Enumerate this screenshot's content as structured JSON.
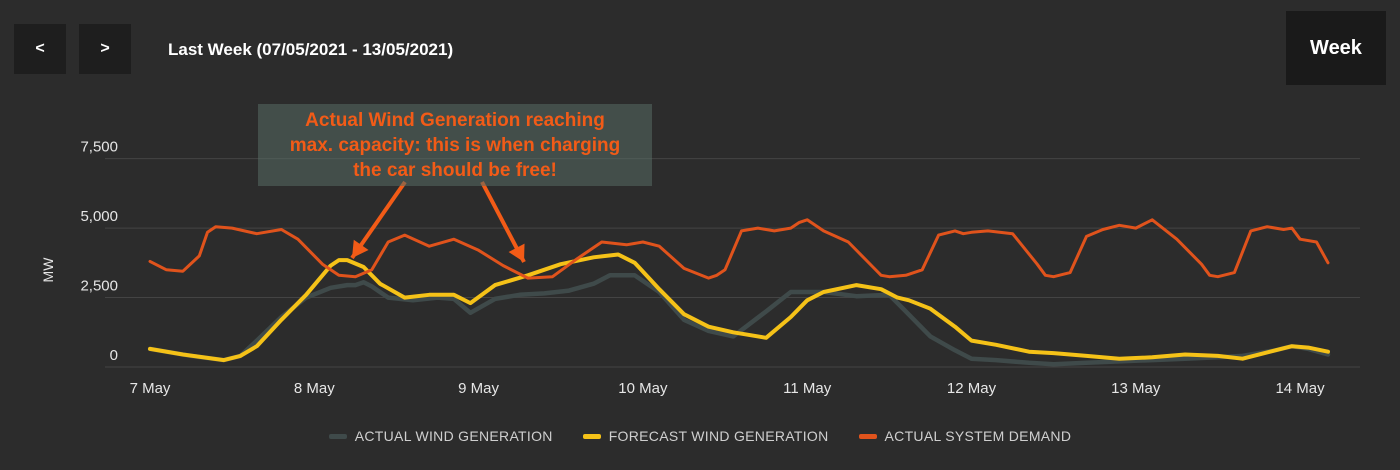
{
  "controls": {
    "prev_label": "<",
    "next_label": ">",
    "range_title": "Last Week (07/05/2021 - 13/05/2021)",
    "view_label": "Week"
  },
  "annotation": {
    "text": "Actual Wind Generation reaching\nmax. capacity: this is when charging\nthe car should be free!"
  },
  "colors": {
    "background": "#2c2c2c",
    "actual_wind": "#3f4a4a",
    "forecast_wind": "#f5c218",
    "demand": "#e0531c",
    "annotation_text": "#f25b17"
  },
  "chart_data": {
    "type": "line",
    "ylabel": "MW",
    "ylim": [
      0,
      9000
    ],
    "xlim": [
      0,
      7.17
    ],
    "yticks": [
      0,
      2500,
      5000,
      7500
    ],
    "ytick_labels": [
      "0",
      "2,500",
      "5,000",
      "7,500"
    ],
    "xtick_labels": [
      "7 May",
      "8 May",
      "9 May",
      "10 May",
      "11 May",
      "12 May",
      "13 May",
      "14 May"
    ],
    "grid": true,
    "legend_position": "bottom",
    "series": [
      {
        "name": "ACTUAL WIND GENERATION",
        "color": "#3f4a4a",
        "x": [
          0,
          0.25,
          0.45,
          0.55,
          0.65,
          0.8,
          0.95,
          1.1,
          1.2,
          1.25,
          1.3,
          1.35,
          1.45,
          1.6,
          1.75,
          1.85,
          1.95,
          2.1,
          2.25,
          2.4,
          2.55,
          2.7,
          2.8,
          2.95,
          3.1,
          3.25,
          3.4,
          3.55,
          3.75,
          3.9,
          4.0,
          4.1,
          4.3,
          4.5,
          4.6,
          4.75,
          4.9,
          5.0,
          5.15,
          5.35,
          5.5,
          5.7,
          5.9,
          6.1,
          6.3,
          6.5,
          6.65,
          6.85,
          6.95,
          7.05,
          7.17
        ],
        "y": [
          650,
          400,
          250,
          400,
          950,
          1800,
          2500,
          2850,
          2950,
          2950,
          3050,
          2900,
          2500,
          2400,
          2500,
          2450,
          1950,
          2450,
          2600,
          2650,
          2750,
          3000,
          3300,
          3300,
          2700,
          1700,
          1300,
          1100,
          2000,
          2700,
          2700,
          2700,
          2550,
          2600,
          2000,
          1100,
          600,
          300,
          250,
          150,
          100,
          150,
          200,
          250,
          300,
          350,
          400,
          600,
          750,
          650,
          450
        ]
      },
      {
        "name": "FORECAST WIND GENERATION",
        "color": "#f5c218",
        "x": [
          0,
          0.2,
          0.45,
          0.55,
          0.65,
          0.8,
          0.95,
          1.05,
          1.1,
          1.15,
          1.2,
          1.3,
          1.4,
          1.55,
          1.7,
          1.85,
          1.95,
          2.1,
          2.3,
          2.5,
          2.7,
          2.85,
          2.95,
          3.1,
          3.25,
          3.4,
          3.55,
          3.75,
          3.9,
          4.0,
          4.1,
          4.3,
          4.45,
          4.55,
          4.62,
          4.75,
          4.9,
          5.0,
          5.15,
          5.35,
          5.5,
          5.7,
          5.9,
          6.1,
          6.3,
          6.5,
          6.65,
          6.85,
          6.95,
          7.05,
          7.17
        ],
        "y": [
          650,
          450,
          250,
          400,
          750,
          1700,
          2600,
          3300,
          3650,
          3850,
          3850,
          3600,
          3000,
          2500,
          2600,
          2600,
          2300,
          2950,
          3300,
          3700,
          3950,
          4050,
          3750,
          2800,
          1900,
          1450,
          1250,
          1050,
          1800,
          2400,
          2700,
          2950,
          2800,
          2500,
          2400,
          2100,
          1450,
          950,
          800,
          550,
          500,
          400,
          300,
          350,
          450,
          400,
          300,
          600,
          750,
          700,
          550
        ]
      },
      {
        "name": "ACTUAL SYSTEM DEMAND",
        "color": "#e0531c",
        "x": [
          0,
          0.1,
          0.2,
          0.3,
          0.35,
          0.4,
          0.5,
          0.65,
          0.8,
          0.9,
          1.05,
          1.15,
          1.25,
          1.35,
          1.45,
          1.55,
          1.7,
          1.85,
          2.0,
          2.15,
          2.3,
          2.45,
          2.6,
          2.75,
          2.9,
          3.0,
          3.1,
          3.25,
          3.4,
          3.45,
          3.5,
          3.6,
          3.7,
          3.8,
          3.9,
          3.95,
          4.0,
          4.1,
          4.25,
          4.4,
          4.45,
          4.5,
          4.6,
          4.7,
          4.8,
          4.9,
          4.95,
          5.0,
          5.1,
          5.25,
          5.4,
          5.45,
          5.5,
          5.6,
          5.7,
          5.8,
          5.9,
          5.95,
          6.0,
          6.1,
          6.25,
          6.4,
          6.45,
          6.5,
          6.6,
          6.7,
          6.8,
          6.9,
          6.95,
          7.0,
          7.1,
          7.17
        ],
        "y": [
          3800,
          3500,
          3450,
          4000,
          4850,
          5050,
          5000,
          4800,
          4950,
          4600,
          3700,
          3300,
          3250,
          3500,
          4500,
          4750,
          4350,
          4600,
          4200,
          3650,
          3200,
          3250,
          3900,
          4500,
          4400,
          4500,
          4350,
          3550,
          3200,
          3300,
          3500,
          4900,
          5000,
          4900,
          5000,
          5200,
          5300,
          4900,
          4500,
          3600,
          3300,
          3250,
          3300,
          3500,
          4750,
          4900,
          4800,
          4850,
          4900,
          4800,
          3700,
          3300,
          3250,
          3400,
          4700,
          4950,
          5100,
          5050,
          5000,
          5300,
          4600,
          3700,
          3300,
          3250,
          3400,
          4900,
          5050,
          4950,
          5000,
          4600,
          4500,
          3750
        ]
      }
    ]
  }
}
